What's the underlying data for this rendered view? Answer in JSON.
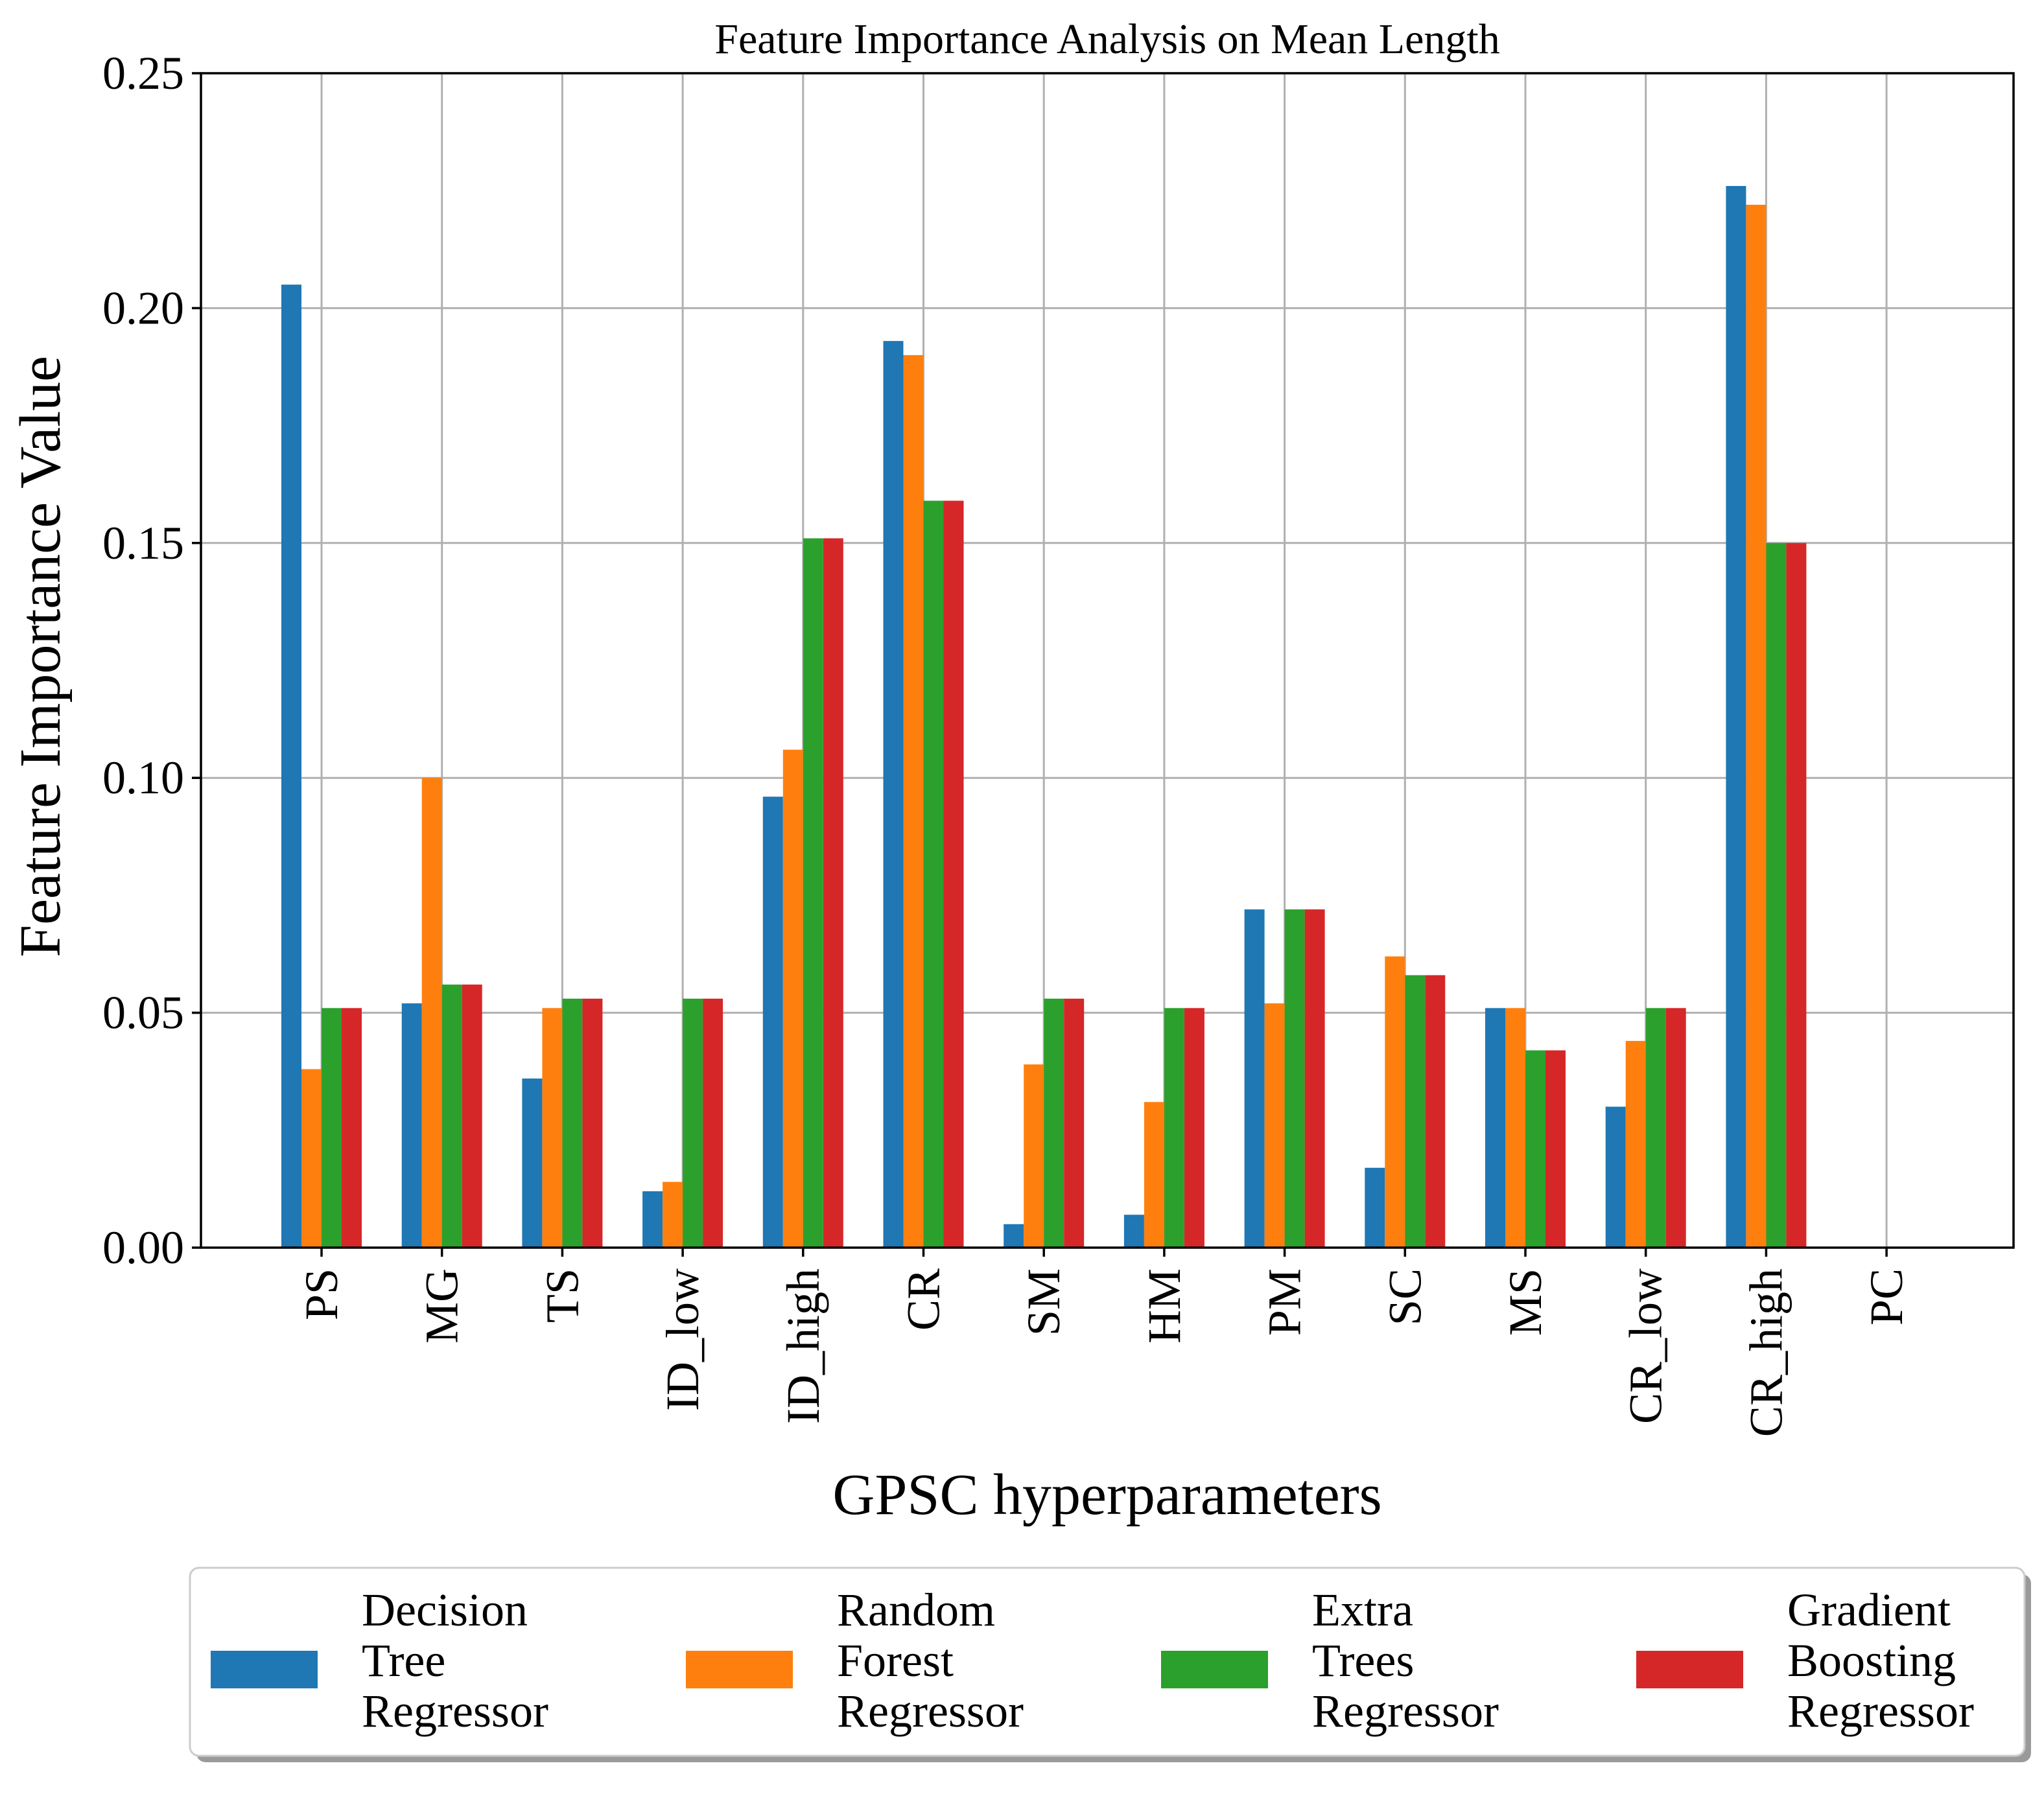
{
  "chart_data": {
    "type": "bar",
    "title": "Feature Importance Analysis on Mean Length",
    "xlabel": "GPSC hyperparameters",
    "ylabel": "Feature Importance Value",
    "ylim": [
      0,
      0.25
    ],
    "yticks": [
      "0.00",
      "0.05",
      "0.10",
      "0.15",
      "0.20",
      "0.25"
    ],
    "grid": true,
    "legend_position": "bottom",
    "categories": [
      "PS",
      "MG",
      "TS",
      "ID_low",
      "ID_high",
      "CR",
      "SM",
      "HM",
      "PM",
      "SC",
      "MS",
      "CR_low",
      "CR_high",
      "PC"
    ],
    "series": [
      {
        "name": "Decision Tree Regressor",
        "label_lines": [
          "Decision",
          "Tree",
          "Regressor"
        ],
        "color": "#1f77b4",
        "values": [
          0.205,
          0.052,
          0.036,
          0.012,
          0.096,
          0.193,
          0.005,
          0.007,
          0.072,
          0.017,
          0.051,
          0.03,
          0.226,
          0.0
        ]
      },
      {
        "name": "Random Forest Regressor",
        "label_lines": [
          "Random",
          "Forest",
          "Regressor"
        ],
        "color": "#ff7f0e",
        "values": [
          0.038,
          0.1,
          0.051,
          0.014,
          0.106,
          0.19,
          0.039,
          0.031,
          0.052,
          0.062,
          0.051,
          0.044,
          0.222,
          0.0
        ]
      },
      {
        "name": "Extra Trees Regressor",
        "label_lines": [
          "Extra",
          "Trees",
          "Regressor"
        ],
        "color": "#2ca02c",
        "values": [
          0.051,
          0.056,
          0.053,
          0.053,
          0.151,
          0.159,
          0.053,
          0.051,
          0.072,
          0.058,
          0.042,
          0.051,
          0.15,
          0.0
        ]
      },
      {
        "name": "Gradient Boosting Regressor",
        "label_lines": [
          "Gradient",
          "Boosting",
          "Regressor"
        ],
        "color": "#d62728",
        "values": [
          0.051,
          0.056,
          0.053,
          0.053,
          0.151,
          0.159,
          0.053,
          0.051,
          0.072,
          0.058,
          0.042,
          0.051,
          0.15,
          0.0
        ]
      }
    ]
  }
}
